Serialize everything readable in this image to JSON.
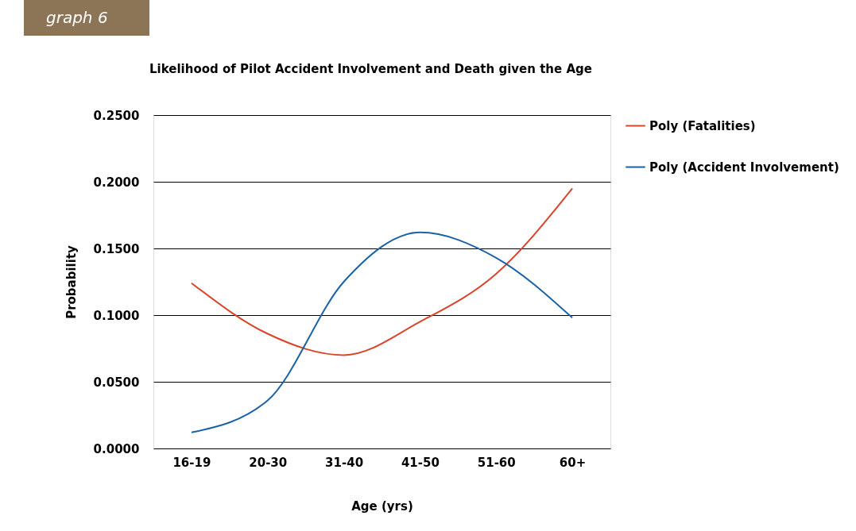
{
  "chart_data": {
    "type": "line",
    "title": "Likelihood of Pilot Accident Involvement and Death given the Age",
    "annotations": [
      "graph 6"
    ],
    "xlabel": "Age (yrs)",
    "ylabel": "Probability",
    "categories": [
      "16-19",
      "20-30",
      "31-40",
      "41-50",
      "51-60",
      "60+"
    ],
    "series": [
      {
        "name": "Poly (Fatalities)",
        "color": "#d9442a",
        "values": [
          0.124,
          0.086,
          0.07,
          0.095,
          0.131,
          0.195
        ]
      },
      {
        "name": "Poly (Accident Involvement)",
        "color": "#1a62a8",
        "values": [
          0.012,
          0.036,
          0.125,
          0.162,
          0.143,
          0.098
        ]
      }
    ],
    "ylim": [
      0,
      0.25
    ],
    "yticks": [
      {
        "value": 0,
        "label": "0.0000"
      },
      {
        "value": 0.05,
        "label": "0.0500"
      },
      {
        "value": 0.1,
        "label": "0.1000"
      },
      {
        "value": 0.15,
        "label": "0.1500"
      },
      {
        "value": 0.2,
        "label": "0.2000"
      },
      {
        "value": 0.25,
        "label": "0.2500"
      }
    ],
    "grid": "y",
    "legend": "right",
    "marker": "none",
    "line_style": "solid"
  }
}
